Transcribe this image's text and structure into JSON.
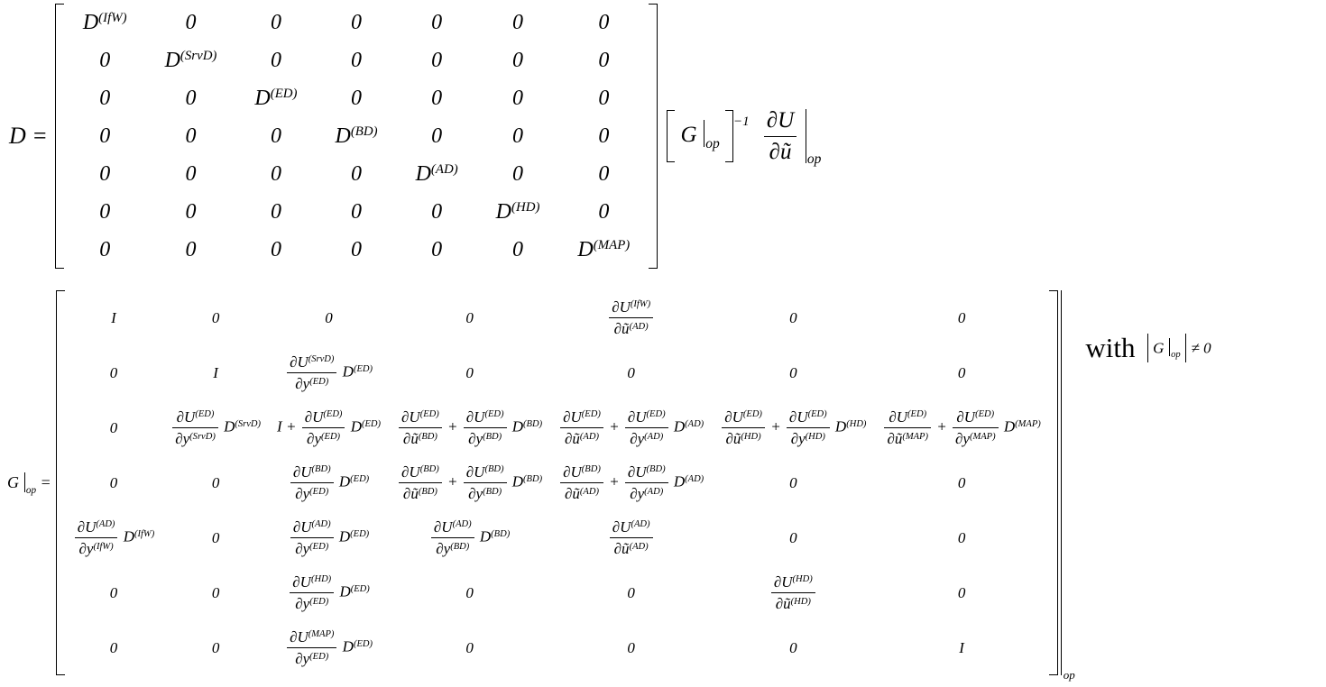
{
  "colors": {
    "background": "#ffffff",
    "ink": "#000000"
  },
  "equation_D": {
    "lhs": "D =",
    "matrix": {
      "rows": [
        [
          "D^{(IfW)}",
          "0",
          "0",
          "0",
          "0",
          "0",
          "0"
        ],
        [
          "0",
          "D^{(SrvD)}",
          "0",
          "0",
          "0",
          "0",
          "0"
        ],
        [
          "0",
          "0",
          "D^{(ED)}",
          "0",
          "0",
          "0",
          "0"
        ],
        [
          "0",
          "0",
          "0",
          "D^{(BD)}",
          "0",
          "0",
          "0"
        ],
        [
          "0",
          "0",
          "0",
          "0",
          "D^{(AD)}",
          "0",
          "0"
        ],
        [
          "0",
          "0",
          "0",
          "0",
          "0",
          "D^{(HD)}",
          "0"
        ],
        [
          "0",
          "0",
          "0",
          "0",
          "0",
          "0",
          "D^{(MAP)}"
        ]
      ]
    },
    "inverse_group": "@l G @v_{op} @r",
    "exponent": "−1",
    "gradient_term": "@f{∂U}{∂ũ} @V_{op}"
  },
  "equation_G": {
    "lhs": "G @v_{op} =",
    "matrix": {
      "rows": [
        [
          "I",
          "0",
          "0",
          "0",
          "@f{∂U^{(IfW)}}{∂ũ^{(AD)}}",
          "0",
          "0"
        ],
        [
          "0",
          "I",
          "@f{∂U^{(SrvD)}}{∂y^{(ED)}} D^{(ED)}",
          "0",
          "0",
          "0",
          "0"
        ],
        [
          "0",
          "@f{∂U^{(ED)}}{∂y^{(SrvD)}} D^{(SrvD)}",
          "I + @f{∂U^{(ED)}}{∂y^{(ED)}} D^{(ED)}",
          "@f{∂U^{(ED)}}{∂ũ^{(BD)}} + @f{∂U^{(ED)}}{∂y^{(BD)}} D^{(BD)}",
          "@f{∂U^{(ED)}}{∂ũ^{(AD)}} + @f{∂U^{(ED)}}{∂y^{(AD)}} D^{(AD)}",
          "@f{∂U^{(ED)}}{∂ũ^{(HD)}} + @f{∂U^{(ED)}}{∂y^{(HD)}} D^{(HD)}",
          "@f{∂U^{(ED)}}{∂ũ^{(MAP)}} + @f{∂U^{(ED)}}{∂y^{(MAP)}} D^{(MAP)}"
        ],
        [
          "0",
          "0",
          "@f{∂U^{(BD)}}{∂y^{(ED)}} D^{(ED)}",
          "@f{∂U^{(BD)}}{∂ũ^{(BD)}} + @f{∂U^{(BD)}}{∂y^{(BD)}} D^{(BD)}",
          "@f{∂U^{(BD)}}{∂ũ^{(AD)}} + @f{∂U^{(BD)}}{∂y^{(AD)}} D^{(AD)}",
          "0",
          "0"
        ],
        [
          "@f{∂U^{(AD)}}{∂y^{(IfW)}} D^{(IfW)}",
          "0",
          "@f{∂U^{(AD)}}{∂y^{(ED)}} D^{(ED)}",
          "@f{∂U^{(AD)}}{∂y^{(BD)}} D^{(BD)}",
          "@f{∂U^{(AD)}}{∂ũ^{(AD)}}",
          "0",
          "0"
        ],
        [
          "0",
          "0",
          "@f{∂U^{(HD)}}{∂y^{(ED)}} D^{(ED)}",
          "0",
          "0",
          "@f{∂U^{(HD)}}{∂ũ^{(HD)}}",
          "0"
        ],
        [
          "0",
          "0",
          "@f{∂U^{(MAP)}}{∂y^{(ED)}} D^{(ED)}",
          "0",
          "0",
          "0",
          "I"
        ]
      ]
    },
    "eval_subscript": "op",
    "with_label": "with",
    "condition": "@b G @v_{op} @b ≠ 0"
  }
}
